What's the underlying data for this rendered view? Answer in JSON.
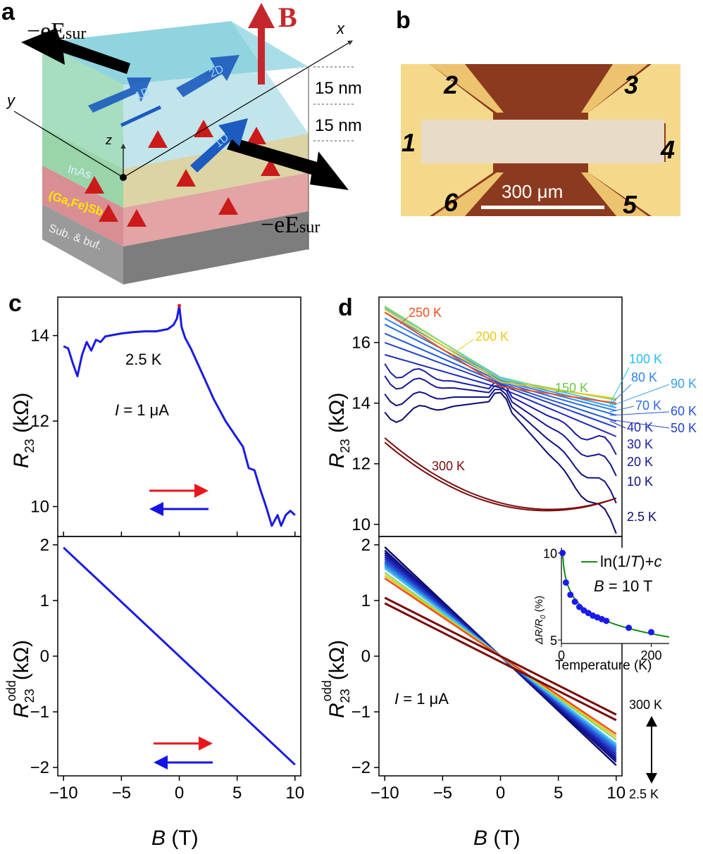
{
  "colors": {
    "red_arrow": "#e8171c",
    "blue_arrow": "#1414e6",
    "curve_blue": "#1b1be0",
    "dark_red": "#7a0c0c",
    "ln_fit": "#138a13",
    "dots": "#1a1aee"
  },
  "panel_a": {
    "label": "a",
    "efield_label": "−eE",
    "efield_sub": "sur",
    "b_label": "B",
    "x_axis": "x",
    "y_axis": "y",
    "z_axis": "z",
    "arrow_1d_top": "1D",
    "arrow_2d": "2D",
    "arrow_1d_bottom": "1D",
    "thick_top": "15 nm",
    "thick_bottom": "15 nm",
    "layer_inas": "InAs",
    "layer_gafesb": "(Ga,Fe)Sb",
    "layer_sub": "Sub. & buf."
  },
  "panel_b": {
    "label": "b",
    "contacts": [
      "1",
      "2",
      "3",
      "4",
      "5",
      "6"
    ],
    "scale_bar": "300 μm"
  },
  "panel_c": {
    "label": "c",
    "temp_label": "2.5 K",
    "current_label_i": "I",
    "current_label_rest": " = 1 μA",
    "ylabel_top": "R",
    "ylabel_top_sub": "23",
    "ylabel_top_unit": " (kΩ)",
    "ylabel_bottom_sup": "odd",
    "ylabel_bottom_unit": "(kΩ)",
    "xlabel_b": "B",
    "xlabel_unit": " (T)"
  },
  "panel_d": {
    "label": "d",
    "temperatures": [
      "250 K",
      "200 K",
      "150 K",
      "100 K",
      "80 K",
      "90 K",
      "70 K",
      "60 K",
      "40 K",
      "50 K",
      "30 K",
      "20 K",
      "10 K",
      "2.5 K",
      "300 K"
    ],
    "current_label_i": "I",
    "current_label_rest": " = 1 μA",
    "range_top": "300 K",
    "range_bottom": "2.5 K",
    "inset_ylabel": "ΔR/R",
    "inset_ylabel_sub": "0",
    "inset_ylabel_unit": " (%)",
    "inset_xlabel": "Temperature (K)",
    "inset_legend_ln": "ln(1/",
    "inset_legend_t": "T",
    "inset_legend_rest": ")+",
    "inset_legend_c": "c",
    "inset_field_b": "B",
    "inset_field_rest": " = 10 T"
  },
  "chart_data": [
    {
      "type": "line",
      "panel": "c-top",
      "xlabel": "B (T)",
      "ylabel": "R23 (kΩ)",
      "xlim": [
        -10.5,
        10.5
      ],
      "ylim": [
        9.3,
        14.9
      ],
      "x_ticks": [
        -10,
        -5,
        0,
        5,
        10
      ],
      "y_ticks": [
        10,
        12,
        14
      ],
      "series": [
        {
          "name": "2.5 K",
          "x": [
            -10,
            -9.6,
            -9.2,
            -8.8,
            -8.4,
            -8,
            -7.6,
            -7.2,
            -6.8,
            -6.4,
            -6,
            -5,
            -4,
            -3,
            -2,
            -1,
            -0.5,
            -0.2,
            0,
            0.2,
            0.5,
            1,
            2,
            3,
            4,
            5,
            5.5,
            6,
            6.5,
            7,
            7.5,
            8,
            8.5,
            8.8,
            9.2,
            9.6,
            10
          ],
          "y": [
            13.75,
            13.7,
            13.35,
            13.05,
            13.55,
            13.85,
            13.65,
            13.9,
            13.85,
            13.98,
            14.0,
            14.05,
            14.08,
            14.1,
            14.1,
            14.15,
            14.25,
            14.4,
            14.7,
            14.2,
            13.95,
            13.7,
            13.1,
            12.5,
            12.0,
            11.6,
            11.4,
            10.9,
            10.85,
            10.4,
            10.0,
            9.55,
            9.8,
            9.55,
            9.8,
            9.9,
            9.8
          ]
        }
      ]
    },
    {
      "type": "line",
      "panel": "c-bottom",
      "xlabel": "B (T)",
      "ylabel": "R23 odd (kΩ)",
      "xlim": [
        -10.5,
        10.5
      ],
      "ylim": [
        -2.15,
        2.15
      ],
      "x_ticks": [
        -10,
        -5,
        0,
        5,
        10
      ],
      "y_ticks": [
        -2,
        -1,
        0,
        1,
        2
      ],
      "series": [
        {
          "name": "2.5 K",
          "x": [
            -10,
            10
          ],
          "y": [
            1.95,
            -1.95
          ]
        }
      ]
    },
    {
      "type": "line",
      "panel": "d-top",
      "xlabel": "B (T)",
      "ylabel": "R23 (kΩ)",
      "xlim": [
        -10.5,
        10.5
      ],
      "ylim": [
        9.6,
        17.5
      ],
      "y_ticks": [
        10,
        12,
        14,
        16
      ],
      "series": [
        {
          "name": "2.5 K",
          "y_left": 13.6,
          "y_mid": 14.1,
          "y_right": 9.8,
          "color": "#0a0a6e"
        },
        {
          "name": "10 K",
          "y_left": 14.2,
          "y_mid": 14.2,
          "y_right": 10.8,
          "color": "#10107f"
        },
        {
          "name": "20 K",
          "y_left": 14.8,
          "y_mid": 14.3,
          "y_right": 11.7,
          "color": "#151591"
        },
        {
          "name": "30 K",
          "y_left": 15.2,
          "y_mid": 14.4,
          "y_right": 12.4,
          "color": "#1a1aa5"
        },
        {
          "name": "40 K",
          "y_left": 15.6,
          "y_mid": 14.5,
          "y_right": 12.9,
          "color": "#1f2ab8"
        },
        {
          "name": "50 K",
          "y_left": 16.0,
          "y_mid": 14.6,
          "y_right": 13.2,
          "color": "#2240c8"
        },
        {
          "name": "60 K",
          "y_left": 16.3,
          "y_mid": 14.65,
          "y_right": 13.4,
          "color": "#2656d6"
        },
        {
          "name": "70 K",
          "y_left": 16.6,
          "y_mid": 14.7,
          "y_right": 13.6,
          "color": "#2a6ae0"
        },
        {
          "name": "80 K",
          "y_left": 16.8,
          "y_mid": 14.75,
          "y_right": 13.75,
          "color": "#2f82ea"
        },
        {
          "name": "90 K",
          "y_left": 17.0,
          "y_mid": 14.8,
          "y_right": 13.85,
          "color": "#3a9cf2"
        },
        {
          "name": "100 K",
          "y_left": 17.15,
          "y_mid": 14.85,
          "y_right": 13.95,
          "color": "#45c0f0"
        },
        {
          "name": "150 K",
          "y_left": 17.2,
          "y_mid": 14.8,
          "y_right": 14.1,
          "color": "#8dd86a"
        },
        {
          "name": "200 K",
          "y_left": 17.1,
          "y_mid": 14.7,
          "y_right": 14.15,
          "color": "#e6c81a"
        },
        {
          "name": "250 K",
          "y_left": 17.0,
          "y_mid": 14.55,
          "y_right": 14.0,
          "color": "#f0501e"
        },
        {
          "name": "300 K",
          "y_left": 12.7,
          "y_mid": 10.9,
          "y_right": 10.6,
          "color": "#7a0c0c"
        }
      ]
    },
    {
      "type": "line",
      "panel": "d-bottom",
      "xlabel": "B (T)",
      "ylabel": "R23 odd (kΩ)",
      "xlim": [
        -10.5,
        10.5
      ],
      "ylim": [
        -2.15,
        2.15
      ],
      "x_ticks": [
        -10,
        -5,
        0,
        5,
        10
      ],
      "y_ticks": [
        -2,
        -1,
        0,
        1,
        2
      ],
      "series": [
        {
          "name": "2.5 K",
          "slope": -0.196
        },
        {
          "name": "10 K",
          "slope": -0.19
        },
        {
          "name": "20 K",
          "slope": -0.186
        },
        {
          "name": "30 K",
          "slope": -0.182
        },
        {
          "name": "40 K",
          "slope": -0.178
        },
        {
          "name": "50 K",
          "slope": -0.174
        },
        {
          "name": "60 K",
          "slope": -0.17
        },
        {
          "name": "70 K",
          "slope": -0.167
        },
        {
          "name": "80 K",
          "slope": -0.164
        },
        {
          "name": "90 K",
          "slope": -0.161
        },
        {
          "name": "100 K",
          "slope": -0.158
        },
        {
          "name": "150 K",
          "slope": -0.15
        },
        {
          "name": "200 K",
          "slope": -0.145
        },
        {
          "name": "250 K",
          "slope": -0.14
        },
        {
          "name": "300 K",
          "slope": -0.105
        }
      ]
    },
    {
      "type": "scatter",
      "panel": "d-inset",
      "xlabel": "Temperature (K)",
      "ylabel": "ΔR/R0 (%)",
      "xlim": [
        0,
        240
      ],
      "ylim": [
        4.8,
        10.3
      ],
      "x_ticks": [
        0,
        200
      ],
      "y_ticks": [
        5,
        10
      ],
      "series": [
        {
          "name": "data",
          "x": [
            2.5,
            10,
            20,
            30,
            40,
            50,
            60,
            70,
            80,
            90,
            100,
            150,
            200,
            250
          ],
          "y": [
            10.0,
            8.3,
            7.6,
            7.2,
            6.9,
            6.7,
            6.55,
            6.4,
            6.3,
            6.2,
            6.1,
            5.7,
            5.45,
            5.25
          ]
        },
        {
          "name": "ln(1/T)+c",
          "type": "fit"
        }
      ]
    }
  ]
}
